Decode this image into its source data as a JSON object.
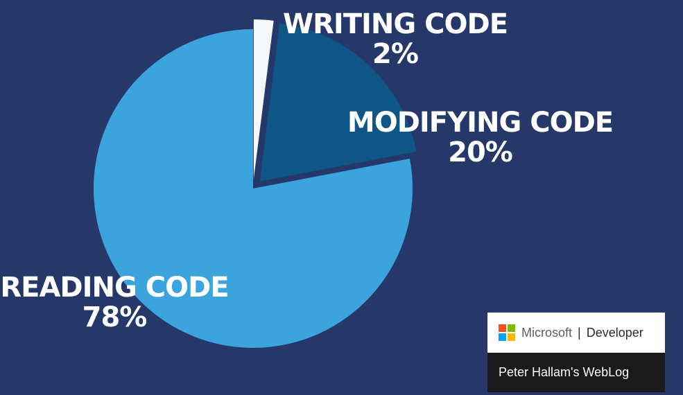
{
  "chart_data": {
    "type": "pie",
    "title": "",
    "start_angle_deg": 0,
    "direction": "clockwise",
    "exploded": true,
    "slices": [
      {
        "key": "writing",
        "label": "WRITING CODE",
        "pct_text": "2%",
        "value": 2,
        "color": "#f4f6f8"
      },
      {
        "key": "modifying",
        "label": "MODIFYING CODE",
        "pct_text": "20%",
        "value": 20,
        "color": "#0d5685"
      },
      {
        "key": "reading",
        "label": "READING CODE",
        "pct_text": "78%",
        "value": 78,
        "color": "#3ba4dd"
      }
    ]
  },
  "colors": {
    "background": "#263769",
    "label": "#ffffff"
  },
  "badge": {
    "brand": "Microsoft",
    "separator": "|",
    "section": "Developer",
    "blog": "Peter Hallam's WebLog",
    "logo_colors": [
      "#f25022",
      "#7fba00",
      "#00a4ef",
      "#ffb900"
    ]
  }
}
